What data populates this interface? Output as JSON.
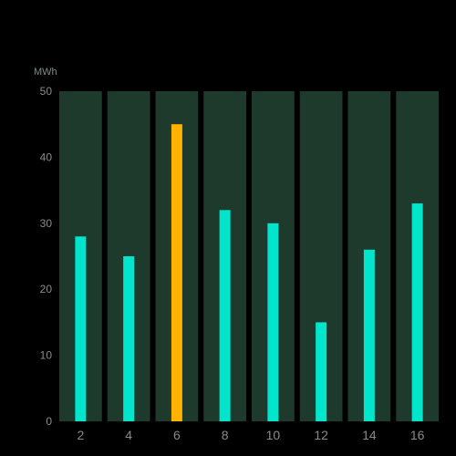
{
  "chart_data": {
    "type": "bar",
    "ylabel": "MWh",
    "ylim": [
      0,
      50
    ],
    "yticks": [
      0,
      10,
      20,
      30,
      40,
      50
    ],
    "categories": [
      "2",
      "4",
      "6",
      "8",
      "10",
      "12",
      "14",
      "16"
    ],
    "values": [
      28,
      25,
      45,
      32,
      30,
      15,
      26,
      33
    ],
    "highlight_index": 2,
    "grid": false,
    "legend": "none"
  },
  "colors": {
    "background": "#000000",
    "band": "#1e3a2d",
    "bar": "#00e5cc",
    "bar_highlight": "#ffb300"
  }
}
